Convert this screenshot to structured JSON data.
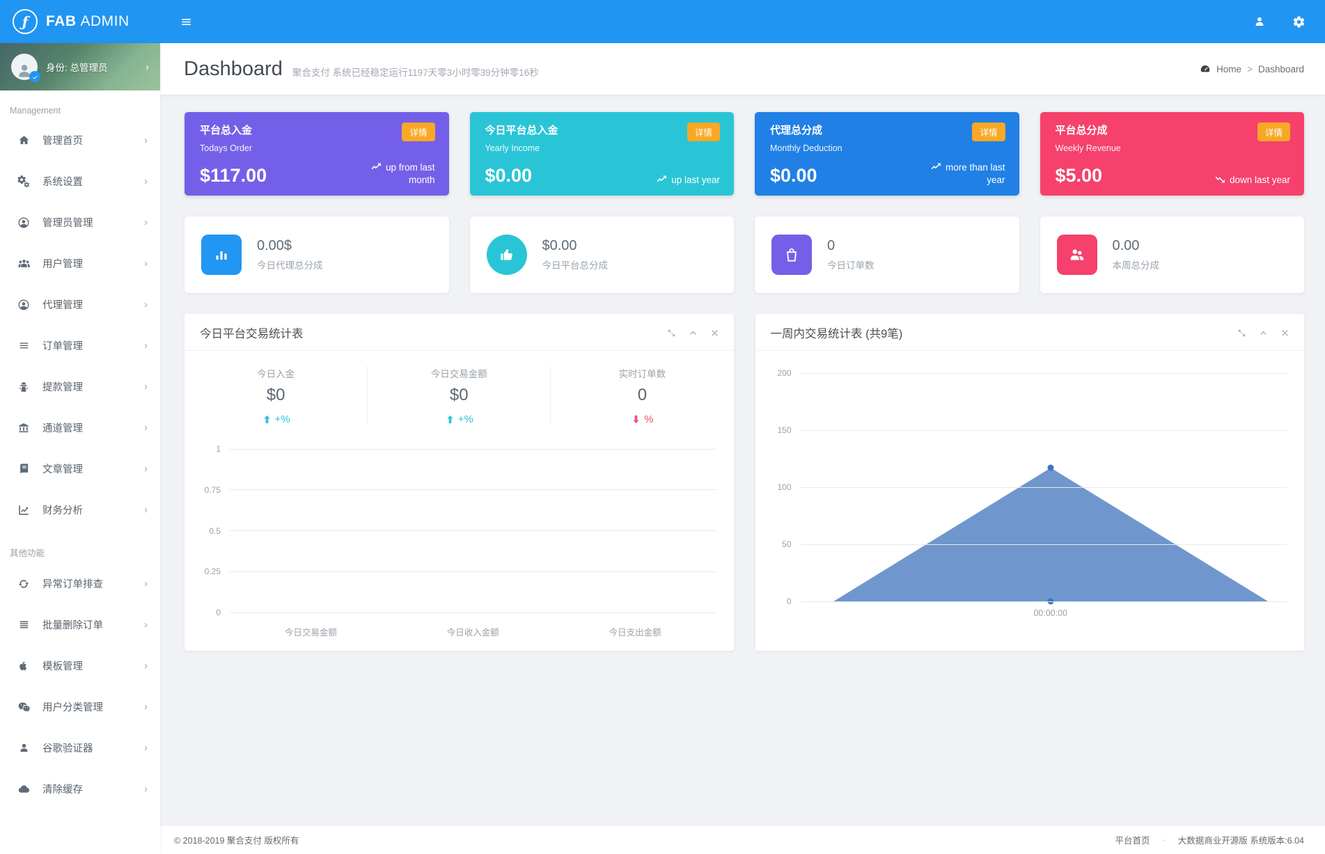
{
  "topbar": {
    "brand": {
      "bold": "FAB",
      "light": "ADMIN"
    },
    "icons": {
      "menu": "hamburger-icon",
      "user": "user-icon",
      "settings": "gear-icon"
    },
    "color": "#2095f2"
  },
  "sidebar": {
    "identity": {
      "label": "身份: 总管理员",
      "chevron": "›"
    },
    "sections": [
      {
        "label": "Management",
        "items": [
          {
            "label": "管理首页",
            "icon": "home-icon"
          },
          {
            "label": "系统设置",
            "icon": "gears-icon"
          },
          {
            "label": "管理员管理",
            "icon": "admin-user-icon"
          },
          {
            "label": "用户管理",
            "icon": "users-group-icon"
          },
          {
            "label": "代理管理",
            "icon": "agent-user-icon"
          },
          {
            "label": "订单管理",
            "icon": "list-icon"
          },
          {
            "label": "提款管理",
            "icon": "user-secret-icon"
          },
          {
            "label": "通道管理",
            "icon": "bank-icon"
          },
          {
            "label": "文章管理",
            "icon": "book-icon"
          },
          {
            "label": "财务分析",
            "icon": "chart-line-icon"
          }
        ]
      },
      {
        "label": "其他功能",
        "items": [
          {
            "label": "异常订单排查",
            "icon": "refresh-icon"
          },
          {
            "label": "批量删除订单",
            "icon": "bars-icon"
          },
          {
            "label": "模板管理",
            "icon": "apple-icon"
          },
          {
            "label": "用户分类管理",
            "icon": "wechat-icon"
          },
          {
            "label": "谷歌验证器",
            "icon": "user-icon"
          },
          {
            "label": "清除缓存",
            "icon": "cloud-icon"
          }
        ]
      }
    ]
  },
  "page_header": {
    "title": "Dashboard",
    "subtitle": "聚合支付 系统已经稳定运行1197天零3小时零39分钟零16秒",
    "breadcrumb": {
      "icon": "gauge-icon",
      "home": "Home",
      "separator": ">",
      "current": "Dashboard"
    }
  },
  "stat_cards": [
    {
      "title": "平台总入金",
      "subtitle": "Todays Order",
      "value": "$117.00",
      "badge": "详情",
      "trend": "up",
      "trend_text": "up from last month",
      "color": "#7460e8"
    },
    {
      "title": "今日平台总入金",
      "subtitle": "Yearly Income",
      "value": "$0.00",
      "badge": "详情",
      "trend": "up",
      "trend_text": "up last year",
      "color": "#29c5d6"
    },
    {
      "title": "代理总分成",
      "subtitle": "Monthly Deduction",
      "value": "$0.00",
      "badge": "详情",
      "trend": "up",
      "trend_text": "more than last year",
      "color": "#2080e5"
    },
    {
      "title": "平台总分成",
      "subtitle": "Weekly Revenue",
      "value": "$5.00",
      "badge": "详情",
      "trend": "down",
      "trend_text": "down last year",
      "color": "#f5416b"
    }
  ],
  "kpi_cards": [
    {
      "value": "0.00$",
      "label": "今日代理总分成",
      "icon": "bar-chart-icon",
      "color": "#2196f3",
      "shape": "square"
    },
    {
      "value": "$0.00",
      "label": "今日平台总分成",
      "icon": "thumbs-up-icon",
      "color": "#29c5d6",
      "shape": "circle"
    },
    {
      "value": "0",
      "label": "今日订单数",
      "icon": "shopping-bag-icon",
      "color": "#7460e8",
      "shape": "square"
    },
    {
      "value": "0.00",
      "label": "本周总分成",
      "icon": "people-icon",
      "color": "#f5416b",
      "shape": "square"
    }
  ],
  "today_panel": {
    "title": "今日平台交易统计表",
    "controls": [
      "expand-icon",
      "chevron-up-icon",
      "close-icon"
    ],
    "stats": [
      {
        "label": "今日入金",
        "value": "$0",
        "trend": "up",
        "trend_text": "+%"
      },
      {
        "label": "今日交易金额",
        "value": "$0",
        "trend": "up",
        "trend_text": "+%"
      },
      {
        "label": "实时订单数",
        "value": "0",
        "trend": "down",
        "trend_text": "%"
      }
    ]
  },
  "week_panel": {
    "title": "一周内交易统计表 (共9笔)",
    "controls": [
      "expand-icon",
      "chevron-up-icon",
      "close-icon"
    ]
  },
  "chart_data": [
    {
      "type": "line",
      "title": "今日平台交易统计表",
      "categories": [
        "今日交易金额",
        "今日收入金额",
        "今日支出金额"
      ],
      "values": [
        0,
        0,
        0
      ],
      "ylim": [
        0,
        1
      ],
      "yticks": [
        0,
        0.25,
        0.5,
        0.75,
        1
      ],
      "grid": true,
      "legend": false
    },
    {
      "type": "area",
      "title": "一周内交易统计表 (共9笔)",
      "x": [
        "",
        "00:00:00",
        ""
      ],
      "values": [
        0,
        117,
        0
      ],
      "x_label": "00:00:00",
      "ylim": [
        0,
        200
      ],
      "yticks": [
        0,
        50,
        100,
        150,
        200
      ],
      "markers": [
        {
          "x": "00:00:00",
          "y": 117
        },
        {
          "x": "00:00:00",
          "y": 0
        }
      ],
      "fill_color": "#6f97cd",
      "marker_color": "#3f74c2",
      "grid": true,
      "legend": false
    }
  ],
  "footer": {
    "copyright": "© 2018-2019 聚合支付 版权所有",
    "home_link": "平台首页",
    "separator": "·",
    "version": "大数据商业开源版 系统版本:6.04"
  }
}
